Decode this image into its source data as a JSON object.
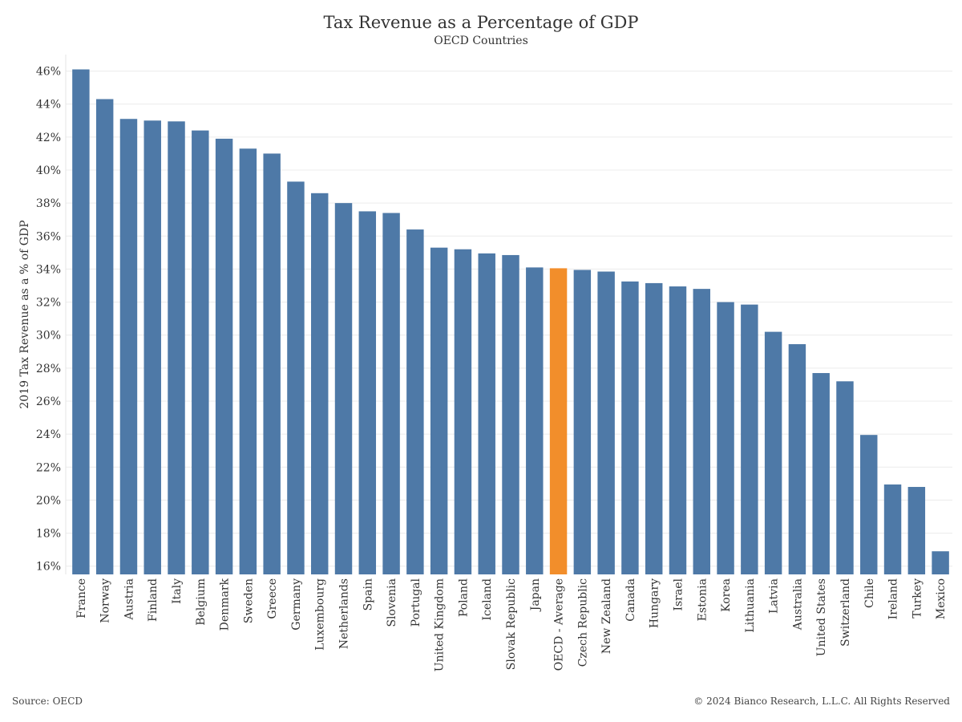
{
  "chart_data": {
    "type": "bar",
    "title": "Tax Revenue as a Percentage of GDP",
    "subtitle": "OECD Countries",
    "ylabel": "2019 Tax Revenue as a % of GDP",
    "xlabel": "",
    "ylim": [
      15.5,
      47
    ],
    "y_ticks": [
      16,
      18,
      20,
      22,
      24,
      26,
      28,
      30,
      32,
      34,
      36,
      38,
      40,
      42,
      44,
      46
    ],
    "y_tick_labels": [
      "16%",
      "18%",
      "20%",
      "22%",
      "24%",
      "26%",
      "28%",
      "30%",
      "32%",
      "34%",
      "36%",
      "38%",
      "40%",
      "42%",
      "44%",
      "46%"
    ],
    "grid": true,
    "bar_color": "#4e79a7",
    "highlight_color": "#f28e2b",
    "highlight_category": "OECD - Average",
    "categories": [
      "France",
      "Norway",
      "Austria",
      "Finland",
      "Italy",
      "Belgium",
      "Denmark",
      "Sweden",
      "Greece",
      "Germany",
      "Luxembourg",
      "Netherlands",
      "Spain",
      "Slovenia",
      "Portugal",
      "United Kingdom",
      "Poland",
      "Iceland",
      "Slovak Republic",
      "Japan",
      "OECD - Average",
      "Czech Republic",
      "New Zealand",
      "Canada",
      "Hungary",
      "Israel",
      "Estonia",
      "Korea",
      "Lithuania",
      "Latvia",
      "Australia",
      "United States",
      "Switzerland",
      "Chile",
      "Ireland",
      "Turkey",
      "Mexico"
    ],
    "values": [
      46.1,
      44.3,
      43.1,
      43.0,
      42.95,
      42.4,
      41.9,
      41.3,
      41.0,
      39.3,
      38.6,
      38.0,
      37.5,
      37.4,
      36.4,
      35.3,
      35.2,
      34.95,
      34.85,
      34.1,
      34.05,
      33.95,
      33.85,
      33.25,
      33.15,
      32.95,
      32.8,
      32.0,
      31.85,
      30.2,
      29.45,
      27.7,
      27.2,
      23.95,
      20.95,
      20.8,
      16.9
    ]
  },
  "footer": {
    "source": "Source: OECD",
    "copyright": "© 2024 Bianco Research, L.L.C. All Rights Reserved"
  }
}
